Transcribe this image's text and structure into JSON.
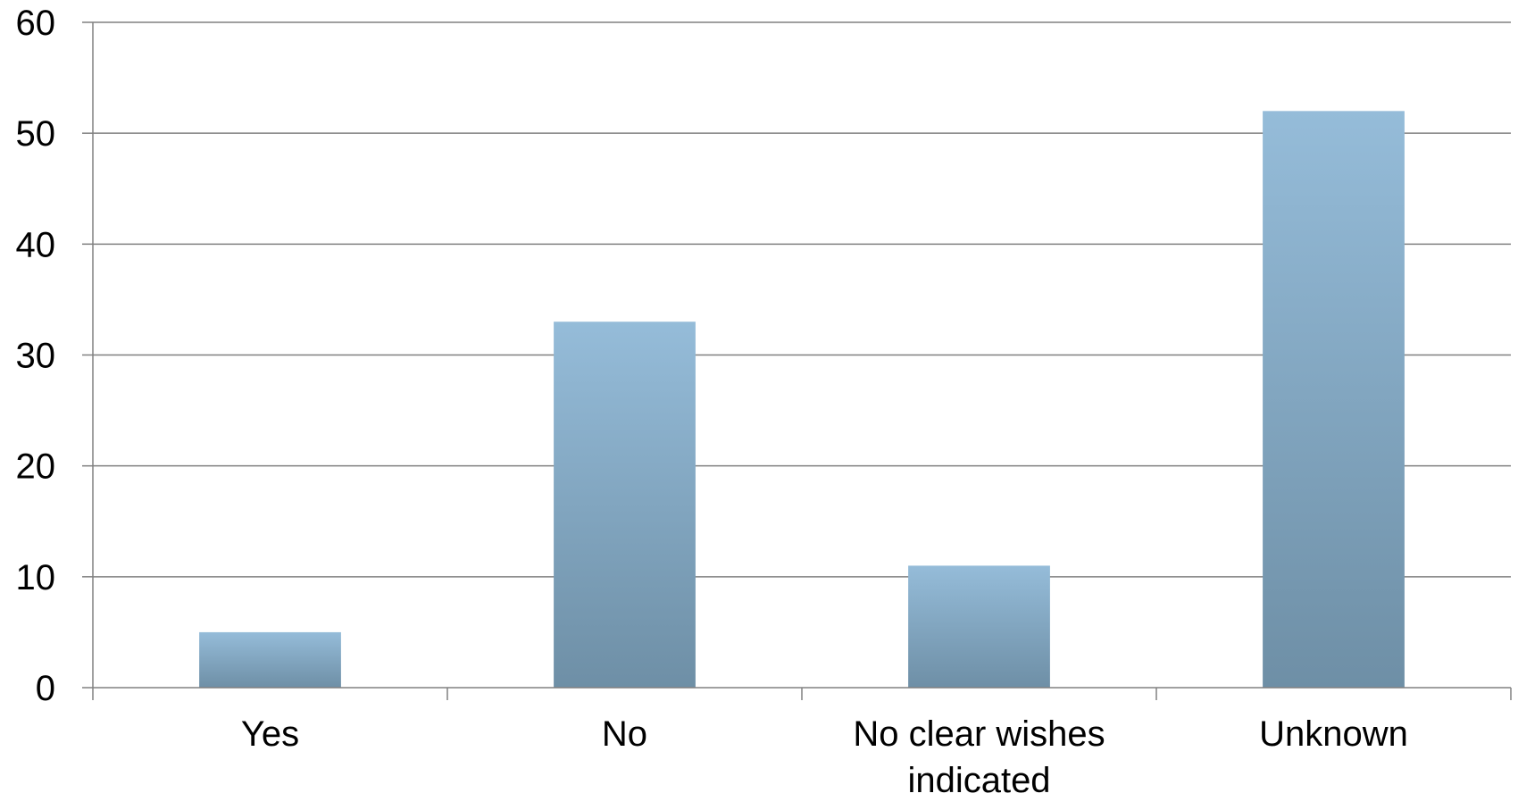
{
  "chart_data": {
    "type": "bar",
    "title": "",
    "xlabel": "",
    "ylabel": "",
    "categories": [
      [
        "Yes"
      ],
      [
        "No"
      ],
      [
        "No clear wishes",
        "indicated"
      ],
      [
        "Unknown"
      ]
    ],
    "values": [
      5,
      33,
      11,
      52
    ],
    "ylim": [
      0,
      60
    ],
    "yticks": [
      "0",
      "10",
      "20",
      "30",
      "40",
      "50",
      "60"
    ],
    "grid": true,
    "legend": "none",
    "colors": {
      "bar_top": "#95bcd9",
      "bar_bottom": "#6e8fa6",
      "grid": "#808080",
      "axis": "#808080"
    }
  }
}
